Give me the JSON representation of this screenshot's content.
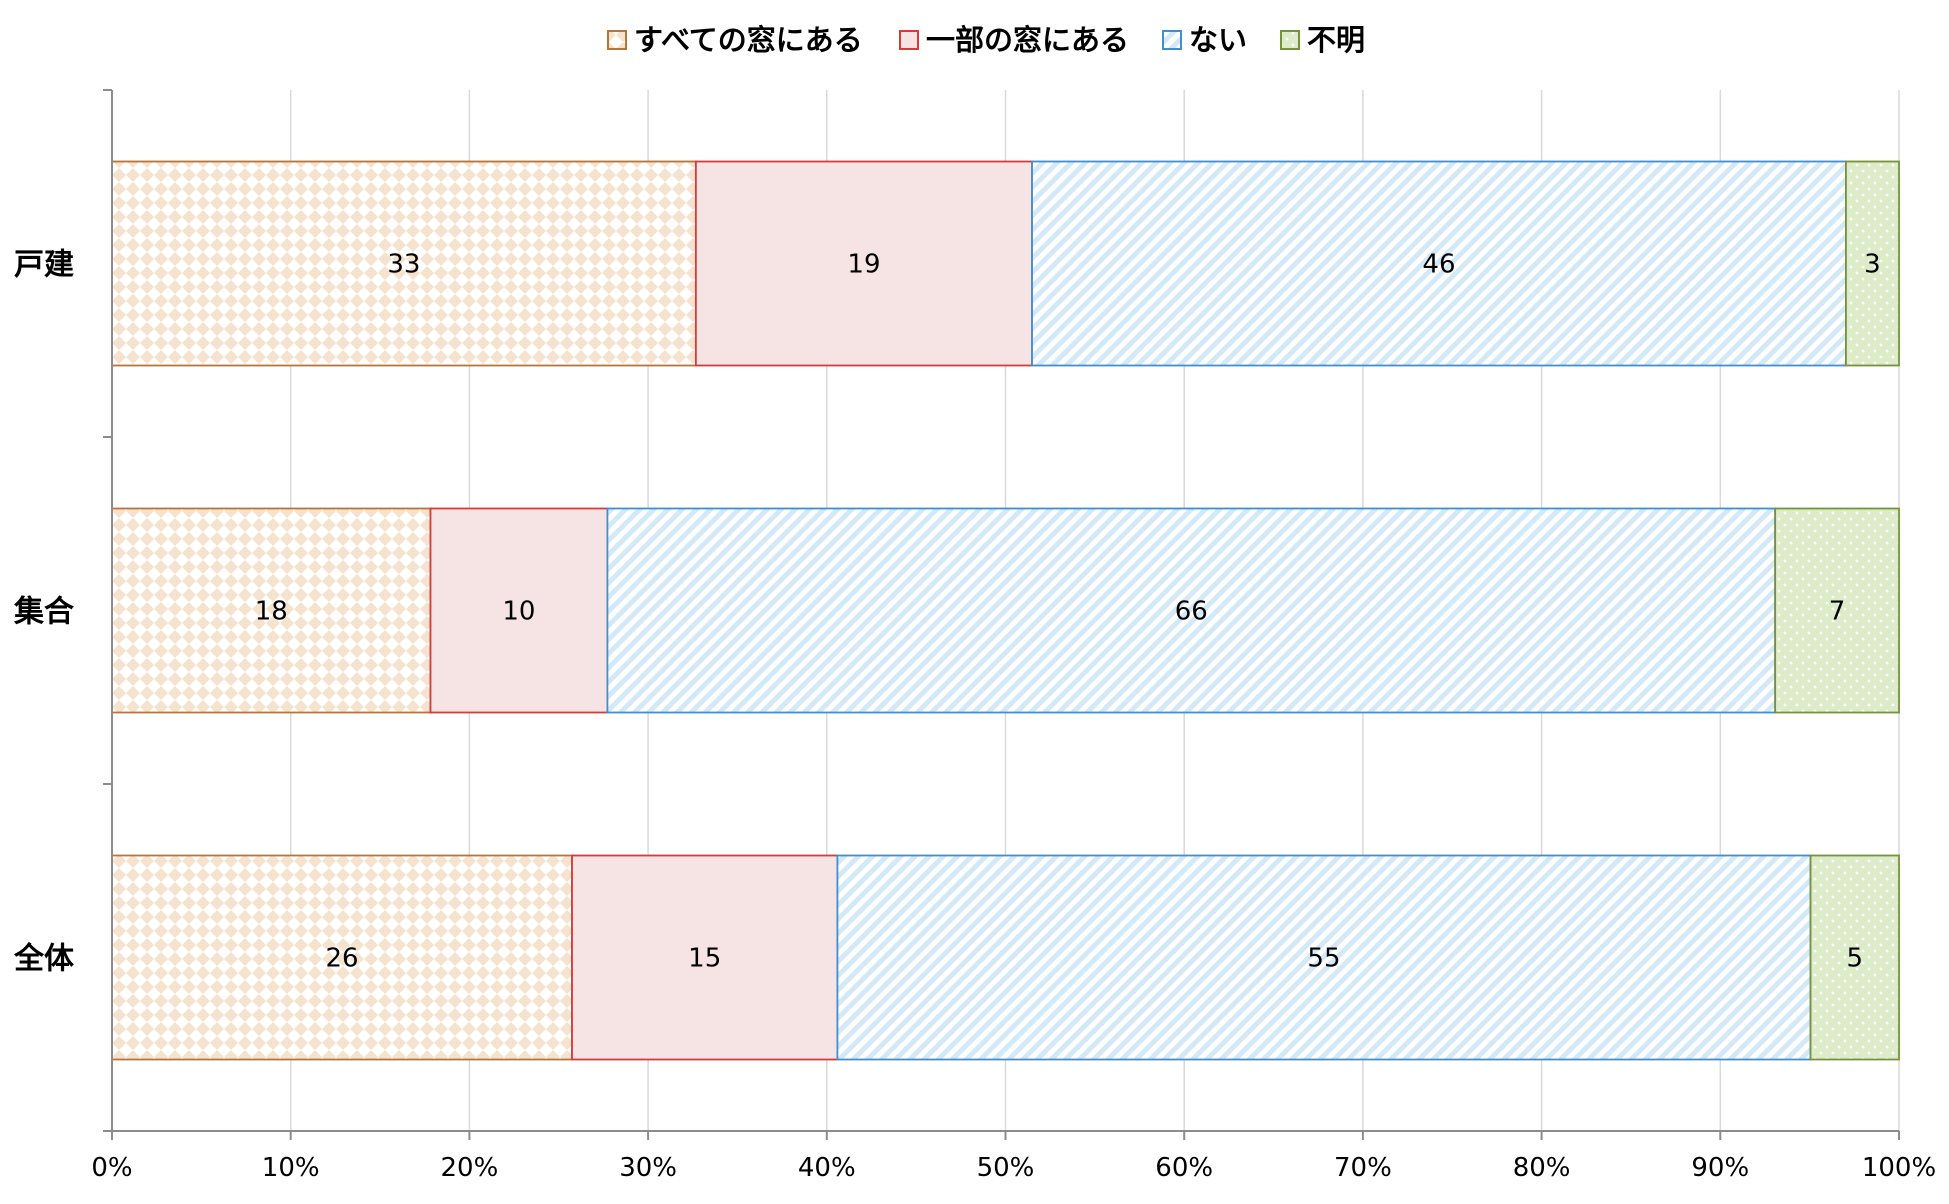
{
  "chart_data": {
    "type": "bar",
    "orientation": "horizontal",
    "stacked": "percent",
    "categories": [
      "戸建",
      "集合",
      "全体"
    ],
    "series": [
      {
        "name": "すべての窓にある",
        "values": [
          33,
          18,
          26
        ],
        "color": "#B8753A",
        "fill": "#F6E3CF",
        "pattern": "diamond-check"
      },
      {
        "name": "一部の窓にある",
        "values": [
          19,
          10,
          15
        ],
        "color": "#D9393A",
        "fill": "#F6E4E5",
        "pattern": "solid"
      },
      {
        "name": "ない",
        "values": [
          46,
          66,
          55
        ],
        "color": "#3F8FD2",
        "fill": "#D4E9F8",
        "pattern": "diagonal-stripe"
      },
      {
        "name": "不明",
        "values": [
          3,
          7,
          5
        ],
        "color": "#76933C",
        "fill": "#DCEBC8",
        "pattern": "dots"
      }
    ],
    "xlim": [
      0,
      100
    ],
    "x_ticks": [
      "0%",
      "10%",
      "20%",
      "30%",
      "40%",
      "50%",
      "60%",
      "70%",
      "80%",
      "90%",
      "100%"
    ],
    "grid": "vertical",
    "legend": "top-center",
    "data_labels": true,
    "title": "",
    "xlabel": "",
    "ylabel": ""
  }
}
